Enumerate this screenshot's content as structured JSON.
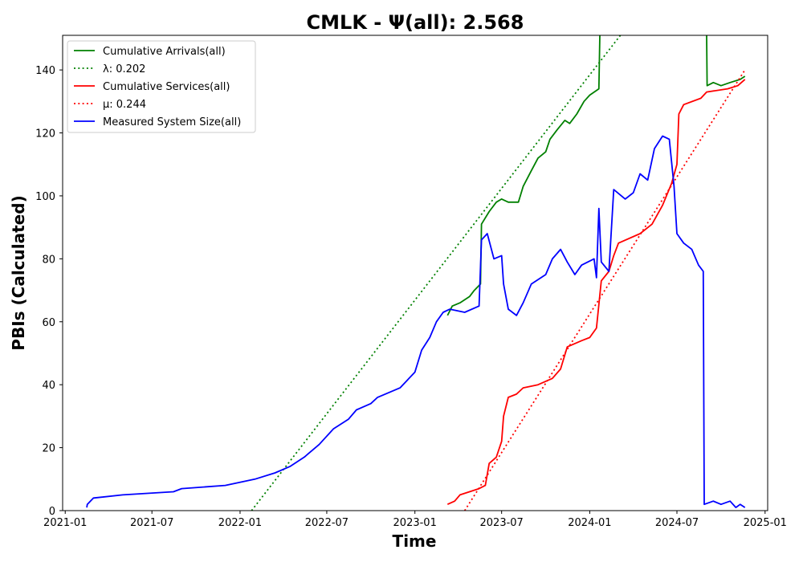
{
  "chart_data": {
    "type": "line",
    "title": "CMLK -  Ψ(all): 2.568",
    "xlabel": "Time",
    "ylabel": "PBIs (Calculated)",
    "xlim": [
      "2021-01-01",
      "2025-01-01"
    ],
    "ylim": [
      0,
      151
    ],
    "x_ticks": [
      "2021-01",
      "2021-07",
      "2022-01",
      "2022-07",
      "2023-01",
      "2023-07",
      "2024-01",
      "2024-07",
      "2025-01"
    ],
    "y_ticks": [
      0,
      20,
      40,
      60,
      80,
      100,
      120,
      140
    ],
    "grid": false,
    "legend_position": "top-left",
    "series": [
      {
        "name": "Cumulative Arrivals(all)",
        "color": "#008000",
        "style": "solid",
        "points": [
          [
            "2023-03-10",
            62
          ],
          [
            "2023-03-20",
            65
          ],
          [
            "2023-04-05",
            66
          ],
          [
            "2023-04-25",
            68
          ],
          [
            "2023-05-05",
            70
          ],
          [
            "2023-05-18",
            72
          ],
          [
            "2023-05-20",
            91
          ],
          [
            "2023-06-05",
            95
          ],
          [
            "2023-06-20",
            98
          ],
          [
            "2023-07-01",
            99
          ],
          [
            "2023-07-15",
            98
          ],
          [
            "2023-08-05",
            98
          ],
          [
            "2023-08-15",
            103
          ],
          [
            "2023-09-01",
            108
          ],
          [
            "2023-09-15",
            112
          ],
          [
            "2023-10-01",
            114
          ],
          [
            "2023-10-10",
            118
          ],
          [
            "2023-10-25",
            121
          ],
          [
            "2023-11-10",
            124
          ],
          [
            "2023-11-20",
            123
          ],
          [
            "2023-12-05",
            126
          ],
          [
            "2023-12-20",
            130
          ],
          [
            "2024-01-01",
            132
          ],
          [
            "2024-01-20",
            134
          ],
          [
            "2024-01-22",
            151
          ]
        ]
      },
      {
        "name": "Cumulative Arrivals(all) (tail)",
        "color": "#008000",
        "style": "solid",
        "points": [
          [
            "2024-09-01",
            151
          ],
          [
            "2024-09-02",
            135
          ],
          [
            "2024-09-15",
            136
          ],
          [
            "2024-10-01",
            135
          ],
          [
            "2024-10-20",
            136
          ],
          [
            "2024-11-10",
            137
          ],
          [
            "2024-11-20",
            138
          ]
        ]
      },
      {
        "name": "λ: 0.202",
        "color": "#008000",
        "style": "dotted",
        "points": [
          [
            "2022-01-25",
            0
          ],
          [
            "2024-03-05",
            151
          ]
        ]
      },
      {
        "name": "Cumulative Services(all)",
        "color": "#ff0000",
        "style": "solid",
        "points": [
          [
            "2023-03-10",
            2
          ],
          [
            "2023-03-25",
            3
          ],
          [
            "2023-04-05",
            5
          ],
          [
            "2023-05-15",
            7
          ],
          [
            "2023-05-28",
            8
          ],
          [
            "2023-06-05",
            15
          ],
          [
            "2023-06-20",
            17
          ],
          [
            "2023-07-01",
            22
          ],
          [
            "2023-07-05",
            30
          ],
          [
            "2023-07-15",
            36
          ],
          [
            "2023-08-01",
            37
          ],
          [
            "2023-08-15",
            39
          ],
          [
            "2023-09-15",
            40
          ],
          [
            "2023-10-15",
            42
          ],
          [
            "2023-11-01",
            45
          ],
          [
            "2023-11-15",
            52
          ],
          [
            "2023-12-15",
            54
          ],
          [
            "2024-01-01",
            55
          ],
          [
            "2024-01-15",
            58
          ],
          [
            "2024-01-25",
            73
          ],
          [
            "2024-02-10",
            76
          ],
          [
            "2024-02-20",
            81
          ],
          [
            "2024-03-01",
            85
          ],
          [
            "2024-04-15",
            88
          ],
          [
            "2024-05-10",
            91
          ],
          [
            "2024-06-01",
            97
          ],
          [
            "2024-06-20",
            104
          ],
          [
            "2024-07-01",
            110
          ],
          [
            "2024-07-05",
            126
          ],
          [
            "2024-07-15",
            129
          ],
          [
            "2024-08-20",
            131
          ],
          [
            "2024-09-01",
            133
          ],
          [
            "2024-10-15",
            134
          ],
          [
            "2024-11-05",
            135
          ],
          [
            "2024-11-20",
            137
          ]
        ]
      },
      {
        "name": "μ: 0.244",
        "color": "#ff0000",
        "style": "dotted",
        "points": [
          [
            "2023-04-15",
            0
          ],
          [
            "2024-11-20",
            140
          ]
        ]
      },
      {
        "name": "Measured System Size(all)",
        "color": "#0000ff",
        "style": "solid",
        "points": [
          [
            "2021-02-15",
            1
          ],
          [
            "2021-02-16",
            2
          ],
          [
            "2021-03-01",
            4
          ],
          [
            "2021-05-01",
            5
          ],
          [
            "2021-08-15",
            6
          ],
          [
            "2021-09-01",
            7
          ],
          [
            "2021-12-01",
            8
          ],
          [
            "2022-02-01",
            10
          ],
          [
            "2022-03-15",
            12
          ],
          [
            "2022-04-15",
            14
          ],
          [
            "2022-05-15",
            17
          ],
          [
            "2022-06-15",
            21
          ],
          [
            "2022-07-15",
            26
          ],
          [
            "2022-08-15",
            29
          ],
          [
            "2022-09-01",
            32
          ],
          [
            "2022-10-01",
            34
          ],
          [
            "2022-10-15",
            36
          ],
          [
            "2022-12-01",
            39
          ],
          [
            "2023-01-01",
            44
          ],
          [
            "2023-01-15",
            51
          ],
          [
            "2023-02-01",
            55
          ],
          [
            "2023-02-15",
            60
          ],
          [
            "2023-03-01",
            63
          ],
          [
            "2023-03-15",
            64
          ],
          [
            "2023-04-15",
            63
          ],
          [
            "2023-05-15",
            65
          ],
          [
            "2023-05-20",
            86
          ],
          [
            "2023-06-01",
            88
          ],
          [
            "2023-06-15",
            80
          ],
          [
            "2023-07-01",
            81
          ],
          [
            "2023-07-05",
            72
          ],
          [
            "2023-07-15",
            64
          ],
          [
            "2023-08-01",
            62
          ],
          [
            "2023-08-15",
            66
          ],
          [
            "2023-09-01",
            72
          ],
          [
            "2023-10-01",
            75
          ],
          [
            "2023-10-15",
            80
          ],
          [
            "2023-11-01",
            83
          ],
          [
            "2023-11-15",
            79
          ],
          [
            "2023-12-01",
            75
          ],
          [
            "2023-12-15",
            78
          ],
          [
            "2024-01-10",
            80
          ],
          [
            "2024-01-15",
            74
          ],
          [
            "2024-01-20",
            96
          ],
          [
            "2024-01-25",
            79
          ],
          [
            "2024-02-10",
            76
          ],
          [
            "2024-02-20",
            102
          ],
          [
            "2024-03-15",
            99
          ],
          [
            "2024-04-01",
            101
          ],
          [
            "2024-04-15",
            107
          ],
          [
            "2024-05-01",
            105
          ],
          [
            "2024-05-15",
            115
          ],
          [
            "2024-06-01",
            119
          ],
          [
            "2024-06-15",
            118
          ],
          [
            "2024-06-25",
            103
          ],
          [
            "2024-07-01",
            88
          ],
          [
            "2024-07-15",
            85
          ],
          [
            "2024-08-01",
            83
          ],
          [
            "2024-08-15",
            78
          ],
          [
            "2024-08-25",
            76
          ],
          [
            "2024-08-27",
            2
          ],
          [
            "2024-09-15",
            3
          ],
          [
            "2024-10-01",
            2
          ],
          [
            "2024-10-20",
            3
          ],
          [
            "2024-11-01",
            1
          ],
          [
            "2024-11-10",
            2
          ],
          [
            "2024-11-20",
            1
          ]
        ]
      }
    ],
    "legend": [
      {
        "label": "Cumulative Arrivals(all)",
        "color": "#008000",
        "style": "solid"
      },
      {
        "label": "λ: 0.202",
        "color": "#008000",
        "style": "dotted"
      },
      {
        "label": "Cumulative Services(all)",
        "color": "#ff0000",
        "style": "solid"
      },
      {
        "label": "μ: 0.244",
        "color": "#ff0000",
        "style": "dotted"
      },
      {
        "label": "Measured System Size(all)",
        "color": "#0000ff",
        "style": "solid"
      }
    ]
  }
}
